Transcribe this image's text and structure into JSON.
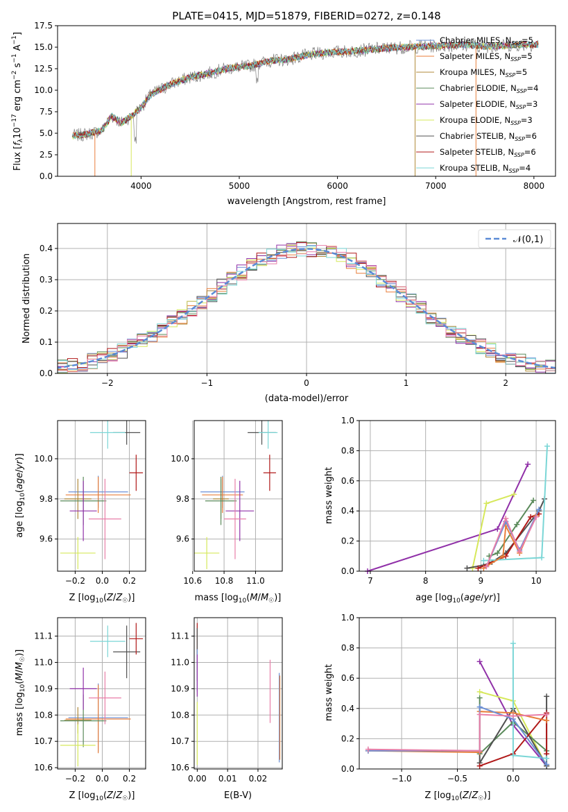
{
  "figure": {
    "title": "PLATE=0415, MJD=51879, FIBERID=0272, z=0.148"
  },
  "colors": {
    "chabrier_miles": "#6b8fd6",
    "salpeter_miles": "#e87e3a",
    "kroupa_miles": "#b08a3a",
    "chabrier_elodie": "#5a8a5a",
    "salpeter_elodie": "#9030a8",
    "kroupa_elodie": "#d6e85a",
    "chabrier_stelib": "#505050",
    "salpeter_stelib": "#b01818",
    "kroupa_stelib": "#7ad6d6",
    "pink": "#e87ea8",
    "data": "#7f7f7f",
    "gauss": "#5a8ad6",
    "grid": "#b0b0b0"
  },
  "chart_data": [
    {
      "id": "spectrum",
      "type": "line",
      "title": "PLATE=0415, MJD=51879, FIBERID=0272, z=0.148",
      "xlabel": "wavelength [Angstrom, rest frame]",
      "ylabel": "Flux [f_λ 10^-17 erg cm^-2 s^-1 A^-1]",
      "xlim": [
        3150,
        8220
      ],
      "ylim": [
        0,
        17.5
      ],
      "xticks": [
        4000,
        5000,
        6000,
        7000,
        8000
      ],
      "yticks": [
        0.0,
        2.5,
        5.0,
        7.5,
        10.0,
        12.5,
        15.0,
        17.5
      ],
      "grid": false,
      "legend_position": "top-right",
      "legend": [
        "Chabrier MILES, N_SSP=5",
        "Salpeter MILES, N_SSP=5",
        "Kroupa MILES, N_SSP=5",
        "Chabrier ELODIE, N_SSP=4",
        "Salpeter ELODIE, N_SSP=3",
        "Kroupa ELODIE, N_SSP=3",
        "Chabrier STELIB, N_SSP=6",
        "Salpeter STELIB, N_SSP=6",
        "Kroupa STELIB, N_SSP=4"
      ],
      "series_continuum": {
        "x": [
          3300,
          3450,
          3600,
          3700,
          3800,
          3900,
          4000,
          4100,
          4300,
          4500,
          4700,
          4900,
          5100,
          5300,
          5500,
          5700,
          5900,
          6100,
          6300,
          6500,
          6700,
          6900,
          7100,
          7300,
          7500,
          7700,
          7900,
          8050
        ],
        "y": [
          4.7,
          4.9,
          5.3,
          7.0,
          6.2,
          7.0,
          8.0,
          9.5,
          10.7,
          11.5,
          12.0,
          12.6,
          12.8,
          13.4,
          13.6,
          14.1,
          14.4,
          14.5,
          14.7,
          14.9,
          15.0,
          15.1,
          15.2,
          15.3,
          15.1,
          15.2,
          15.3,
          15.3
        ]
      }
    },
    {
      "id": "residuals",
      "type": "line",
      "xlabel": "(data-model)/error",
      "ylabel": "Normed distribution",
      "xlim": [
        -2.5,
        2.5
      ],
      "ylim": [
        0,
        0.48
      ],
      "xticks": [
        -2,
        -1,
        0,
        1,
        2
      ],
      "yticks": [
        0.0,
        0.1,
        0.2,
        0.3,
        0.4
      ],
      "grid": true,
      "legend_position": "top-right",
      "legend": [
        "𝒩(0,1)"
      ],
      "gaussian": {
        "mean": 0,
        "std": 1
      }
    },
    {
      "id": "age_vs_Z",
      "type": "scatter",
      "xlabel": "Z [log10(Z/Z☉)]",
      "ylabel": "age  [log10(age/yr)]",
      "xlim": [
        -0.33,
        0.32
      ],
      "ylim": [
        9.44,
        10.19
      ],
      "xticks": [
        -0.2,
        0.0,
        0.2
      ],
      "xticklabels": [
        "−0.2",
        "0.0",
        "0.2"
      ],
      "yticks": [
        9.6,
        9.8,
        10.0
      ],
      "grid": true,
      "points": [
        {
          "x": -0.03,
          "y": 9.835,
          "xerr": 0.22,
          "yerr": 0.08,
          "c": "chabrier_miles"
        },
        {
          "x": -0.03,
          "y": 9.82,
          "xerr": 0.24,
          "yerr": 0.09,
          "c": "salpeter_miles"
        },
        {
          "x": -0.18,
          "y": 9.8,
          "xerr": 0.1,
          "yerr": 0.1,
          "c": "kroupa_miles"
        },
        {
          "x": -0.14,
          "y": 9.79,
          "xerr": 0.17,
          "yerr": 0.12,
          "c": "chabrier_elodie"
        },
        {
          "x": -0.14,
          "y": 9.74,
          "xerr": 0.1,
          "yerr": 0.15,
          "c": "salpeter_elodie"
        },
        {
          "x": -0.18,
          "y": 9.53,
          "xerr": 0.13,
          "yerr": 0.08,
          "c": "kroupa_elodie"
        },
        {
          "x": 0.18,
          "y": 10.13,
          "xerr": 0.1,
          "yerr": 0.06,
          "c": "chabrier_stelib"
        },
        {
          "x": 0.25,
          "y": 9.93,
          "xerr": 0.05,
          "yerr": 0.09,
          "c": "salpeter_stelib"
        },
        {
          "x": 0.04,
          "y": 10.13,
          "xerr": 0.13,
          "yerr": 0.08,
          "c": "kroupa_stelib"
        },
        {
          "x": 0.02,
          "y": 9.7,
          "xerr": 0.12,
          "yerr": 0.2,
          "c": "pink"
        }
      ]
    },
    {
      "id": "age_vs_mass",
      "type": "scatter",
      "xlabel": "mass [log10(M/M☉)]",
      "xlim": [
        10.61,
        11.17
      ],
      "ylim": [
        9.44,
        10.19
      ],
      "xticks": [
        10.6,
        10.8,
        11.0
      ],
      "xticklabels": [
        "10.6",
        "10.8",
        "11.0"
      ],
      "yticks": [
        9.6,
        9.8,
        10.0
      ],
      "grid": true,
      "points": [
        {
          "x": 10.79,
          "y": 9.835,
          "xerr": 0.14,
          "yerr": 0.08,
          "c": "chabrier_miles"
        },
        {
          "x": 10.79,
          "y": 9.82,
          "xerr": 0.13,
          "yerr": 0.09,
          "c": "salpeter_miles"
        },
        {
          "x": 10.78,
          "y": 9.8,
          "xerr": 0.05,
          "yerr": 0.1,
          "c": "kroupa_miles"
        },
        {
          "x": 10.78,
          "y": 9.79,
          "xerr": 0.1,
          "yerr": 0.12,
          "c": "chabrier_elodie"
        },
        {
          "x": 10.9,
          "y": 9.74,
          "xerr": 0.09,
          "yerr": 0.15,
          "c": "salpeter_elodie"
        },
        {
          "x": 10.69,
          "y": 9.53,
          "xerr": 0.08,
          "yerr": 0.08,
          "c": "kroupa_elodie"
        },
        {
          "x": 11.04,
          "y": 10.13,
          "xerr": 0.09,
          "yerr": 0.06,
          "c": "chabrier_stelib"
        },
        {
          "x": 11.09,
          "y": 9.93,
          "xerr": 0.04,
          "yerr": 0.09,
          "c": "salpeter_stelib"
        },
        {
          "x": 11.08,
          "y": 10.13,
          "xerr": 0.06,
          "yerr": 0.08,
          "c": "kroupa_stelib"
        },
        {
          "x": 10.87,
          "y": 9.7,
          "xerr": 0.07,
          "yerr": 0.2,
          "c": "pink"
        }
      ]
    },
    {
      "id": "weight_vs_age",
      "type": "line",
      "xlabel": "age  [log10(age/yr)]",
      "ylabel": "mass weight",
      "xlim": [
        6.8,
        10.35
      ],
      "ylim": [
        0,
        1.0
      ],
      "xticks": [
        7,
        8,
        9,
        10
      ],
      "yticks": [
        0.0,
        0.2,
        0.4,
        0.6,
        0.8,
        1.0
      ],
      "grid": true,
      "series": [
        {
          "c": "salpeter_elodie",
          "x": [
            6.95,
            9.3,
            9.85
          ],
          "y": [
            0.0,
            0.28,
            0.71
          ]
        },
        {
          "c": "kroupa_elodie",
          "x": [
            8.85,
            9.1,
            9.6
          ],
          "y": [
            0.02,
            0.45,
            0.51
          ]
        },
        {
          "c": "chabrier_elodie",
          "x": [
            9.15,
            9.3,
            9.65,
            9.95
          ],
          "y": [
            0.1,
            0.12,
            0.31,
            0.47
          ]
        },
        {
          "c": "chabrier_stelib",
          "x": [
            8.75,
            9.05,
            9.2,
            9.45,
            10.05,
            10.15
          ],
          "y": [
            0.02,
            0.04,
            0.06,
            0.12,
            0.4,
            0.48
          ]
        },
        {
          "c": "salpeter_stelib",
          "x": [
            8.95,
            9.45,
            9.9,
            10.05
          ],
          "y": [
            0.02,
            0.1,
            0.36,
            0.38
          ]
        },
        {
          "c": "kroupa_stelib",
          "x": [
            9.05,
            10.1,
            10.2
          ],
          "y": [
            0.07,
            0.09,
            0.83
          ]
        },
        {
          "c": "salpeter_miles",
          "x": [
            9.05,
            9.4,
            9.45,
            9.7,
            10.0
          ],
          "y": [
            0.02,
            0.1,
            0.3,
            0.12,
            0.37
          ]
        },
        {
          "c": "chabrier_miles",
          "x": [
            9.1,
            9.45,
            9.7,
            10.05
          ],
          "y": [
            0.03,
            0.33,
            0.14,
            0.41
          ]
        },
        {
          "c": "pink",
          "x": [
            9.1,
            9.45,
            9.7,
            10.0
          ],
          "y": [
            0.03,
            0.35,
            0.13,
            0.36
          ]
        }
      ]
    },
    {
      "id": "mass_vs_Z",
      "type": "scatter",
      "xlabel": "Z [log10(Z/Z☉)]",
      "ylabel": "mass [log10(M/M☉)]",
      "xlim": [
        -0.33,
        0.32
      ],
      "ylim": [
        10.595,
        11.17
      ],
      "xticks": [
        -0.2,
        0.0,
        0.2
      ],
      "xticklabels": [
        "−0.2",
        "0.0",
        "0.2"
      ],
      "yticks": [
        10.6,
        10.7,
        10.8,
        10.9,
        11.0,
        11.1
      ],
      "yticklabels": [
        "10.6",
        "10.7",
        "10.8",
        "10.9",
        "11.0",
        "11.1"
      ],
      "grid": true,
      "points": [
        {
          "x": -0.03,
          "y": 10.79,
          "xerr": 0.22,
          "yerr": 0.13,
          "c": "chabrier_miles"
        },
        {
          "x": -0.03,
          "y": 10.785,
          "xerr": 0.24,
          "yerr": 0.13,
          "c": "salpeter_miles"
        },
        {
          "x": -0.18,
          "y": 10.78,
          "xerr": 0.1,
          "yerr": 0.05,
          "c": "kroupa_miles"
        },
        {
          "x": -0.14,
          "y": 10.778,
          "xerr": 0.17,
          "yerr": 0.1,
          "c": "chabrier_elodie"
        },
        {
          "x": -0.14,
          "y": 10.9,
          "xerr": 0.1,
          "yerr": 0.08,
          "c": "salpeter_elodie"
        },
        {
          "x": -0.18,
          "y": 10.685,
          "xerr": 0.13,
          "yerr": 0.08,
          "c": "kroupa_elodie"
        },
        {
          "x": 0.18,
          "y": 11.04,
          "xerr": 0.1,
          "yerr": 0.1,
          "c": "chabrier_stelib"
        },
        {
          "x": 0.25,
          "y": 11.09,
          "xerr": 0.05,
          "yerr": 0.06,
          "c": "salpeter_stelib"
        },
        {
          "x": 0.04,
          "y": 11.08,
          "xerr": 0.13,
          "yerr": 0.06,
          "c": "kroupa_stelib"
        },
        {
          "x": 0.02,
          "y": 10.865,
          "xerr": 0.12,
          "yerr": 0.1,
          "c": "pink"
        }
      ]
    },
    {
      "id": "mass_vs_ebv",
      "type": "scatter",
      "xlabel": "E(B-V)",
      "xlim": [
        -0.001,
        0.028
      ],
      "ylim": [
        10.595,
        11.17
      ],
      "xticks": [
        0.0,
        0.01,
        0.02
      ],
      "xticklabels": [
        "0.00",
        "0.01",
        "0.02"
      ],
      "yticks": [
        10.6,
        10.7,
        10.8,
        10.9,
        11.0,
        11.1
      ],
      "yticklabels": [
        "10.6",
        "10.7",
        "10.8",
        "10.9",
        "11.0",
        "11.1"
      ],
      "grid": true,
      "points": [
        {
          "x": 0.0,
          "y": 11.08,
          "yerr": 0.06,
          "c": "kroupa_stelib"
        },
        {
          "x": 0.0,
          "y": 11.09,
          "yerr": 0.06,
          "c": "salpeter_stelib"
        },
        {
          "x": 0.0,
          "y": 11.03,
          "yerr": 0.1,
          "c": "chabrier_stelib"
        },
        {
          "x": 0.0,
          "y": 10.97,
          "yerr": 0.08,
          "c": "chabrier_miles"
        },
        {
          "x": 0.0,
          "y": 10.95,
          "yerr": 0.08,
          "c": "salpeter_elodie"
        },
        {
          "x": 0.0,
          "y": 10.73,
          "yerr": 0.12,
          "c": "kroupa_elodie"
        },
        {
          "x": 0.024,
          "y": 10.89,
          "yerr": 0.12,
          "c": "pink"
        },
        {
          "x": 0.027,
          "y": 10.79,
          "yerr": 0.17,
          "c": "chabrier_miles"
        },
        {
          "x": 0.0272,
          "y": 10.79,
          "yerr": 0.16,
          "c": "salpeter_miles"
        }
      ]
    },
    {
      "id": "weight_vs_Z",
      "type": "line",
      "xlabel": "Z [log10(Z/Z☉)]",
      "ylabel": "mass weight",
      "xlim": [
        -1.38,
        0.38
      ],
      "ylim": [
        0,
        1.0
      ],
      "xticks": [
        -1.0,
        -0.5,
        0.0
      ],
      "xticklabels": [
        "−1.0",
        "−0.5",
        "0.0"
      ],
      "yticks": [
        0.0,
        0.2,
        0.4,
        0.6,
        0.8,
        1.0
      ],
      "grid": true,
      "series": [
        {
          "c": "salpeter_elodie",
          "x": [
            -0.3,
            0.0,
            0.3
          ],
          "y": [
            0.71,
            0.29,
            0.02
          ]
        },
        {
          "c": "kroupa_elodie",
          "x": [
            -0.3,
            0.0,
            0.3
          ],
          "y": [
            0.51,
            0.45,
            0.02
          ]
        },
        {
          "c": "chabrier_elodie",
          "x": [
            -0.3,
            -0.3,
            0.0,
            0.3
          ],
          "y": [
            0.47,
            0.1,
            0.31,
            0.12
          ]
        },
        {
          "c": "chabrier_stelib",
          "x": [
            -0.3,
            -0.3,
            0.0,
            0.3,
            0.3
          ],
          "y": [
            0.12,
            0.04,
            0.4,
            0.02,
            0.48
          ]
        },
        {
          "c": "salpeter_stelib",
          "x": [
            -0.3,
            0.0,
            0.3,
            0.3
          ],
          "y": [
            0.02,
            0.1,
            0.37,
            0.1
          ]
        },
        {
          "c": "kroupa_stelib",
          "x": [
            0.0,
            0.0,
            0.3
          ],
          "y": [
            0.83,
            0.09,
            0.07
          ]
        },
        {
          "c": "salpeter_miles",
          "x": [
            -1.3,
            -0.3,
            -0.3,
            0.0,
            0.3
          ],
          "y": [
            0.12,
            0.11,
            0.38,
            0.37,
            0.32
          ]
        },
        {
          "c": "chabrier_miles",
          "x": [
            -1.3,
            -0.3,
            -0.3,
            0.0,
            0.3
          ],
          "y": [
            0.12,
            0.12,
            0.41,
            0.33,
            0.03
          ]
        },
        {
          "c": "pink",
          "x": [
            -1.3,
            -0.3,
            -0.3,
            0.0,
            0.3
          ],
          "y": [
            0.13,
            0.12,
            0.36,
            0.35,
            0.36
          ]
        }
      ]
    }
  ]
}
